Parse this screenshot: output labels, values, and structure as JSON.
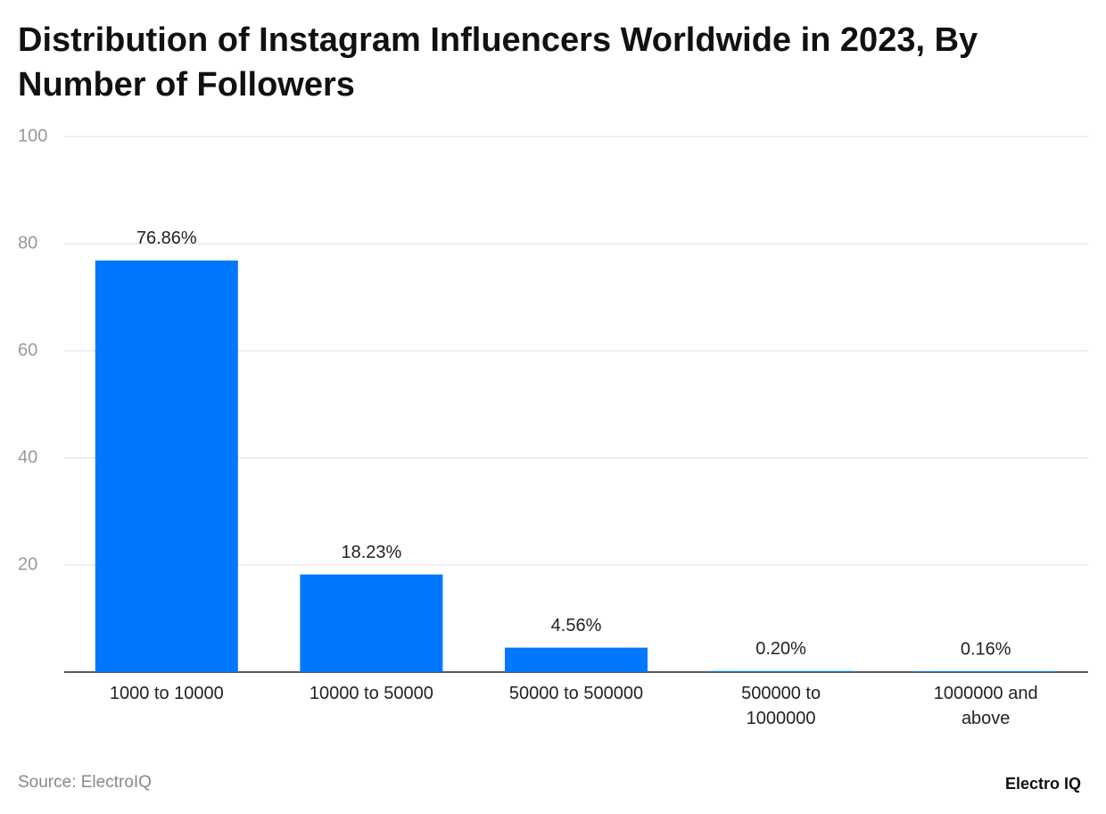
{
  "chart_data": {
    "type": "bar",
    "title": "Distribution of Instagram Influencers Worldwide in 2023, By Number of Followers",
    "categories": [
      "1000 to 10000",
      "10000 to 50000",
      "50000 to 500000",
      "500000 to 1000000",
      "1000000 and above"
    ],
    "values": [
      76.86,
      18.23,
      4.56,
      0.2,
      0.16
    ],
    "value_labels": [
      "76.86%",
      "18.23%",
      "4.56%",
      "0.20%",
      "0.16%"
    ],
    "color": "#0077ff",
    "ylim": [
      0,
      100
    ],
    "yticks": [
      20,
      40,
      60,
      80,
      100
    ],
    "grid": true,
    "source": "Source: ElectroIQ",
    "logo": "Electro IQ"
  }
}
